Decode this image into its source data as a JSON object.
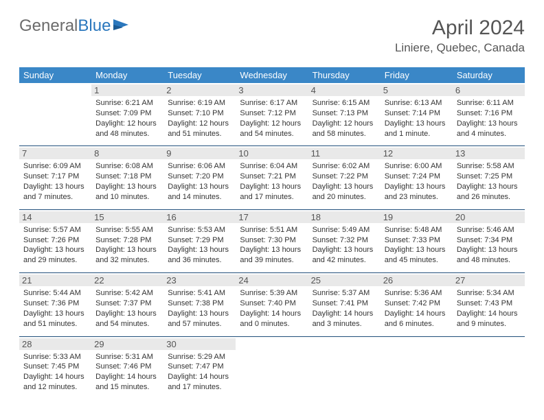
{
  "logo": {
    "text_gray": "General",
    "text_blue": "Blue",
    "icon_color": "#2a77bd"
  },
  "title": "April 2024",
  "location": "Liniere, Quebec, Canada",
  "colors": {
    "header_bg": "#3a87c7",
    "header_text": "#ffffff",
    "daynum_bg": "#e9e9e9",
    "cell_text": "#333333",
    "border": "#1f4e7a",
    "title_color": "#555555"
  },
  "weekdays": [
    "Sunday",
    "Monday",
    "Tuesday",
    "Wednesday",
    "Thursday",
    "Friday",
    "Saturday"
  ],
  "cells": [
    {
      "day": "",
      "lines": []
    },
    {
      "day": "1",
      "lines": [
        "Sunrise: 6:21 AM",
        "Sunset: 7:09 PM",
        "Daylight: 12 hours",
        "and 48 minutes."
      ]
    },
    {
      "day": "2",
      "lines": [
        "Sunrise: 6:19 AM",
        "Sunset: 7:10 PM",
        "Daylight: 12 hours",
        "and 51 minutes."
      ]
    },
    {
      "day": "3",
      "lines": [
        "Sunrise: 6:17 AM",
        "Sunset: 7:12 PM",
        "Daylight: 12 hours",
        "and 54 minutes."
      ]
    },
    {
      "day": "4",
      "lines": [
        "Sunrise: 6:15 AM",
        "Sunset: 7:13 PM",
        "Daylight: 12 hours",
        "and 58 minutes."
      ]
    },
    {
      "day": "5",
      "lines": [
        "Sunrise: 6:13 AM",
        "Sunset: 7:14 PM",
        "Daylight: 13 hours",
        "and 1 minute."
      ]
    },
    {
      "day": "6",
      "lines": [
        "Sunrise: 6:11 AM",
        "Sunset: 7:16 PM",
        "Daylight: 13 hours",
        "and 4 minutes."
      ]
    },
    {
      "day": "7",
      "lines": [
        "Sunrise: 6:09 AM",
        "Sunset: 7:17 PM",
        "Daylight: 13 hours",
        "and 7 minutes."
      ]
    },
    {
      "day": "8",
      "lines": [
        "Sunrise: 6:08 AM",
        "Sunset: 7:18 PM",
        "Daylight: 13 hours",
        "and 10 minutes."
      ]
    },
    {
      "day": "9",
      "lines": [
        "Sunrise: 6:06 AM",
        "Sunset: 7:20 PM",
        "Daylight: 13 hours",
        "and 14 minutes."
      ]
    },
    {
      "day": "10",
      "lines": [
        "Sunrise: 6:04 AM",
        "Sunset: 7:21 PM",
        "Daylight: 13 hours",
        "and 17 minutes."
      ]
    },
    {
      "day": "11",
      "lines": [
        "Sunrise: 6:02 AM",
        "Sunset: 7:22 PM",
        "Daylight: 13 hours",
        "and 20 minutes."
      ]
    },
    {
      "day": "12",
      "lines": [
        "Sunrise: 6:00 AM",
        "Sunset: 7:24 PM",
        "Daylight: 13 hours",
        "and 23 minutes."
      ]
    },
    {
      "day": "13",
      "lines": [
        "Sunrise: 5:58 AM",
        "Sunset: 7:25 PM",
        "Daylight: 13 hours",
        "and 26 minutes."
      ]
    },
    {
      "day": "14",
      "lines": [
        "Sunrise: 5:57 AM",
        "Sunset: 7:26 PM",
        "Daylight: 13 hours",
        "and 29 minutes."
      ]
    },
    {
      "day": "15",
      "lines": [
        "Sunrise: 5:55 AM",
        "Sunset: 7:28 PM",
        "Daylight: 13 hours",
        "and 32 minutes."
      ]
    },
    {
      "day": "16",
      "lines": [
        "Sunrise: 5:53 AM",
        "Sunset: 7:29 PM",
        "Daylight: 13 hours",
        "and 36 minutes."
      ]
    },
    {
      "day": "17",
      "lines": [
        "Sunrise: 5:51 AM",
        "Sunset: 7:30 PM",
        "Daylight: 13 hours",
        "and 39 minutes."
      ]
    },
    {
      "day": "18",
      "lines": [
        "Sunrise: 5:49 AM",
        "Sunset: 7:32 PM",
        "Daylight: 13 hours",
        "and 42 minutes."
      ]
    },
    {
      "day": "19",
      "lines": [
        "Sunrise: 5:48 AM",
        "Sunset: 7:33 PM",
        "Daylight: 13 hours",
        "and 45 minutes."
      ]
    },
    {
      "day": "20",
      "lines": [
        "Sunrise: 5:46 AM",
        "Sunset: 7:34 PM",
        "Daylight: 13 hours",
        "and 48 minutes."
      ]
    },
    {
      "day": "21",
      "lines": [
        "Sunrise: 5:44 AM",
        "Sunset: 7:36 PM",
        "Daylight: 13 hours",
        "and 51 minutes."
      ]
    },
    {
      "day": "22",
      "lines": [
        "Sunrise: 5:42 AM",
        "Sunset: 7:37 PM",
        "Daylight: 13 hours",
        "and 54 minutes."
      ]
    },
    {
      "day": "23",
      "lines": [
        "Sunrise: 5:41 AM",
        "Sunset: 7:38 PM",
        "Daylight: 13 hours",
        "and 57 minutes."
      ]
    },
    {
      "day": "24",
      "lines": [
        "Sunrise: 5:39 AM",
        "Sunset: 7:40 PM",
        "Daylight: 14 hours",
        "and 0 minutes."
      ]
    },
    {
      "day": "25",
      "lines": [
        "Sunrise: 5:37 AM",
        "Sunset: 7:41 PM",
        "Daylight: 14 hours",
        "and 3 minutes."
      ]
    },
    {
      "day": "26",
      "lines": [
        "Sunrise: 5:36 AM",
        "Sunset: 7:42 PM",
        "Daylight: 14 hours",
        "and 6 minutes."
      ]
    },
    {
      "day": "27",
      "lines": [
        "Sunrise: 5:34 AM",
        "Sunset: 7:43 PM",
        "Daylight: 14 hours",
        "and 9 minutes."
      ]
    },
    {
      "day": "28",
      "lines": [
        "Sunrise: 5:33 AM",
        "Sunset: 7:45 PM",
        "Daylight: 14 hours",
        "and 12 minutes."
      ]
    },
    {
      "day": "29",
      "lines": [
        "Sunrise: 5:31 AM",
        "Sunset: 7:46 PM",
        "Daylight: 14 hours",
        "and 15 minutes."
      ]
    },
    {
      "day": "30",
      "lines": [
        "Sunrise: 5:29 AM",
        "Sunset: 7:47 PM",
        "Daylight: 14 hours",
        "and 17 minutes."
      ]
    },
    {
      "day": "",
      "lines": []
    },
    {
      "day": "",
      "lines": []
    },
    {
      "day": "",
      "lines": []
    },
    {
      "day": "",
      "lines": []
    }
  ]
}
